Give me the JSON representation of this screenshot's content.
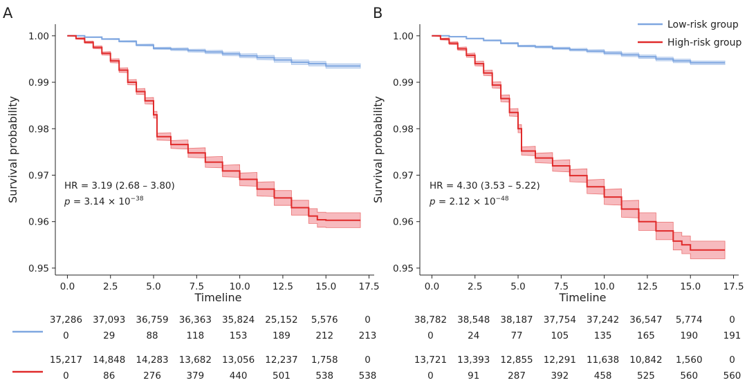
{
  "legend": [
    {
      "label": "Low-risk group",
      "color": "#7ea6e0"
    },
    {
      "label": "High-risk group",
      "color": "#e02a2a"
    }
  ],
  "colors": {
    "low": "#7ea6e0",
    "low_band": "#c9d9f2",
    "high": "#e02a2a",
    "high_band": "#f4a3a8",
    "axis": "#222222"
  },
  "chart_data": [
    {
      "panel": "A",
      "type": "line",
      "xlabel": "Timeline",
      "ylabel": "Survival probability",
      "xlim": [
        -0.7,
        17.8
      ],
      "ylim": [
        0.9485,
        1.0025
      ],
      "x_ticks": [
        "0.0",
        "2.5",
        "5.0",
        "7.5",
        "10.0",
        "12.5",
        "15.0",
        "17.5"
      ],
      "y_ticks": [
        "0.95",
        "0.96",
        "0.97",
        "0.98",
        "0.99",
        "1.00"
      ],
      "annotation": {
        "hr": "HR = 3.19 (2.68 – 3.80)",
        "p_label": "p",
        "p_text": "= 3.14 × 10",
        "p_exp": "−38"
      },
      "series": [
        {
          "name": "Low-risk group",
          "key": "low",
          "x": [
            0,
            1,
            2,
            3,
            4,
            5,
            6,
            7,
            8,
            9,
            10,
            11,
            12,
            13,
            14,
            15,
            17
          ],
          "y": [
            1.0,
            0.9997,
            0.9993,
            0.9988,
            0.998,
            0.9973,
            0.9971,
            0.9968,
            0.9965,
            0.9961,
            0.9957,
            0.9953,
            0.9948,
            0.9943,
            0.994,
            0.9935,
            0.9935
          ],
          "band_half": 0.0005
        },
        {
          "name": "High-risk group",
          "key": "high",
          "x": [
            0,
            0.5,
            1,
            1.5,
            2,
            2.5,
            3,
            3.5,
            4,
            4.5,
            5,
            5.2,
            6,
            7,
            8,
            9,
            10,
            11,
            12,
            13,
            14,
            14.5,
            15,
            17
          ],
          "y": [
            1.0,
            0.9994,
            0.9986,
            0.9975,
            0.9962,
            0.9946,
            0.9926,
            0.99,
            0.988,
            0.986,
            0.983,
            0.9783,
            0.9766,
            0.9748,
            0.9728,
            0.9709,
            0.9691,
            0.967,
            0.9651,
            0.963,
            0.9612,
            0.9604,
            0.9603,
            0.9603
          ],
          "band_half": 0.0016
        }
      ],
      "risk_table": {
        "low": [
          [
            "37,286",
            "0"
          ],
          [
            "37,093",
            "29"
          ],
          [
            "36,759",
            "88"
          ],
          [
            "36,363",
            "118"
          ],
          [
            "35,824",
            "153"
          ],
          [
            "25,152",
            "189"
          ],
          [
            "5,576",
            "212"
          ],
          [
            "0",
            "213"
          ]
        ],
        "high": [
          [
            "15,217",
            "0"
          ],
          [
            "14,848",
            "86"
          ],
          [
            "14,283",
            "276"
          ],
          [
            "13,682",
            "379"
          ],
          [
            "13,056",
            "440"
          ],
          [
            "12,237",
            "501"
          ],
          [
            "1,758",
            "538"
          ],
          [
            "0",
            "538"
          ]
        ]
      }
    },
    {
      "panel": "B",
      "type": "line",
      "xlabel": "Timeline",
      "ylabel": "Survival probability",
      "xlim": [
        -0.7,
        17.8
      ],
      "ylim": [
        0.9485,
        1.0025
      ],
      "x_ticks": [
        "0.0",
        "2.5",
        "5.0",
        "7.5",
        "10.0",
        "12.5",
        "15.0",
        "17.5"
      ],
      "y_ticks": [
        "0.95",
        "0.96",
        "0.97",
        "0.98",
        "0.99",
        "1.00"
      ],
      "annotation": {
        "hr": "HR = 4.30 (3.53 – 5.22)",
        "p_label": "p",
        "p_text": "= 2.12 × 10",
        "p_exp": "−48"
      },
      "series": [
        {
          "name": "Low-risk group",
          "key": "low",
          "x": [
            0,
            1,
            2,
            3,
            4,
            5,
            6,
            7,
            8,
            9,
            10,
            11,
            12,
            13,
            14,
            15,
            17
          ],
          "y": [
            1.0,
            0.9998,
            0.9994,
            0.999,
            0.9984,
            0.9978,
            0.9976,
            0.9973,
            0.997,
            0.9967,
            0.9963,
            0.9959,
            0.9955,
            0.995,
            0.9946,
            0.9942,
            0.9942
          ],
          "band_half": 0.0004
        },
        {
          "name": "High-risk group",
          "key": "high",
          "x": [
            0,
            0.5,
            1,
            1.5,
            2,
            2.5,
            3,
            3.5,
            4,
            4.5,
            5,
            5.2,
            6,
            7,
            8,
            9,
            10,
            11,
            12,
            13,
            14,
            14.5,
            15,
            17
          ],
          "y": [
            1.0,
            0.9993,
            0.9984,
            0.9972,
            0.9958,
            0.994,
            0.992,
            0.9894,
            0.9865,
            0.9835,
            0.98,
            0.9752,
            0.9737,
            0.972,
            0.9699,
            0.9675,
            0.9653,
            0.9627,
            0.96,
            0.958,
            0.9558,
            0.955,
            0.9539,
            0.9539
          ],
          "band_half": 0.0019
        }
      ],
      "risk_table": {
        "low": [
          [
            "38,782",
            "0"
          ],
          [
            "38,548",
            "24"
          ],
          [
            "38,187",
            "77"
          ],
          [
            "37,754",
            "105"
          ],
          [
            "37,242",
            "135"
          ],
          [
            "36,547",
            "165"
          ],
          [
            "5,774",
            "190"
          ],
          [
            "0",
            "191"
          ]
        ],
        "high": [
          [
            "13,721",
            "0"
          ],
          [
            "13,393",
            "91"
          ],
          [
            "12,855",
            "287"
          ],
          [
            "12,291",
            "392"
          ],
          [
            "11,638",
            "458"
          ],
          [
            "10,842",
            "525"
          ],
          [
            "1,560",
            "560"
          ],
          [
            "0",
            "560"
          ]
        ]
      }
    }
  ]
}
